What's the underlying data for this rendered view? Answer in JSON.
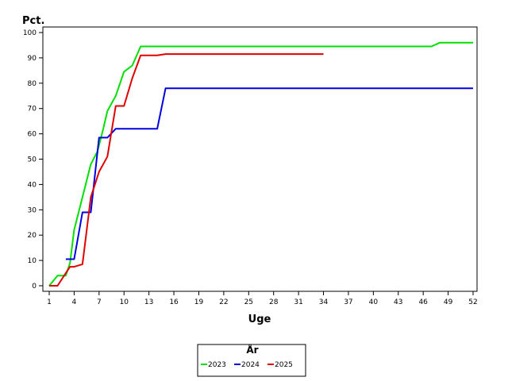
{
  "chart_data": {
    "type": "line",
    "title": "",
    "xlabel": "Uge",
    "ylabel": "Pct.",
    "xlim": [
      1,
      52
    ],
    "ylim": [
      0,
      100
    ],
    "xticks": [
      1,
      4,
      7,
      10,
      13,
      16,
      19,
      22,
      25,
      28,
      31,
      34,
      37,
      40,
      43,
      46,
      49,
      52
    ],
    "yticks": [
      0,
      10,
      20,
      30,
      40,
      50,
      60,
      70,
      80,
      90,
      100
    ],
    "grid": false,
    "legend": {
      "title": "År",
      "placement": "bottom-center"
    },
    "series": [
      {
        "name": "2023",
        "color": "#00e000",
        "points": [
          [
            1,
            0
          ],
          [
            2,
            4
          ],
          [
            3,
            4
          ],
          [
            3.5,
            9
          ],
          [
            4,
            22
          ],
          [
            5,
            35
          ],
          [
            6,
            48
          ],
          [
            6.8,
            53
          ],
          [
            7.5,
            62
          ],
          [
            8,
            69
          ],
          [
            9,
            75
          ],
          [
            10,
            84.5
          ],
          [
            11,
            87
          ],
          [
            12,
            94.5
          ],
          [
            20,
            94.5
          ],
          [
            30,
            94.5
          ],
          [
            40,
            94.5
          ],
          [
            47,
            94.5
          ],
          [
            48,
            96
          ],
          [
            52,
            96
          ]
        ]
      },
      {
        "name": "2024",
        "color": "#0000e0",
        "points": [
          [
            3,
            10.5
          ],
          [
            4,
            10.5
          ],
          [
            5,
            29
          ],
          [
            6,
            29
          ],
          [
            7,
            58.5
          ],
          [
            8,
            58.5
          ],
          [
            9,
            62
          ],
          [
            10,
            62
          ],
          [
            14,
            62
          ],
          [
            15,
            78
          ],
          [
            25,
            78
          ],
          [
            40,
            78
          ],
          [
            52,
            78
          ]
        ]
      },
      {
        "name": "2025",
        "color": "#e00000",
        "points": [
          [
            1,
            0
          ],
          [
            2,
            0
          ],
          [
            3,
            5
          ],
          [
            3.5,
            7.5
          ],
          [
            4,
            7.5
          ],
          [
            5,
            8.5
          ],
          [
            6,
            35
          ],
          [
            7,
            45
          ],
          [
            8,
            51
          ],
          [
            9,
            71
          ],
          [
            10,
            71
          ],
          [
            11,
            82
          ],
          [
            12,
            91
          ],
          [
            14,
            91
          ],
          [
            15,
            91.5
          ],
          [
            20,
            91.5
          ],
          [
            30,
            91.5
          ],
          [
            34,
            91.5
          ]
        ]
      }
    ]
  }
}
